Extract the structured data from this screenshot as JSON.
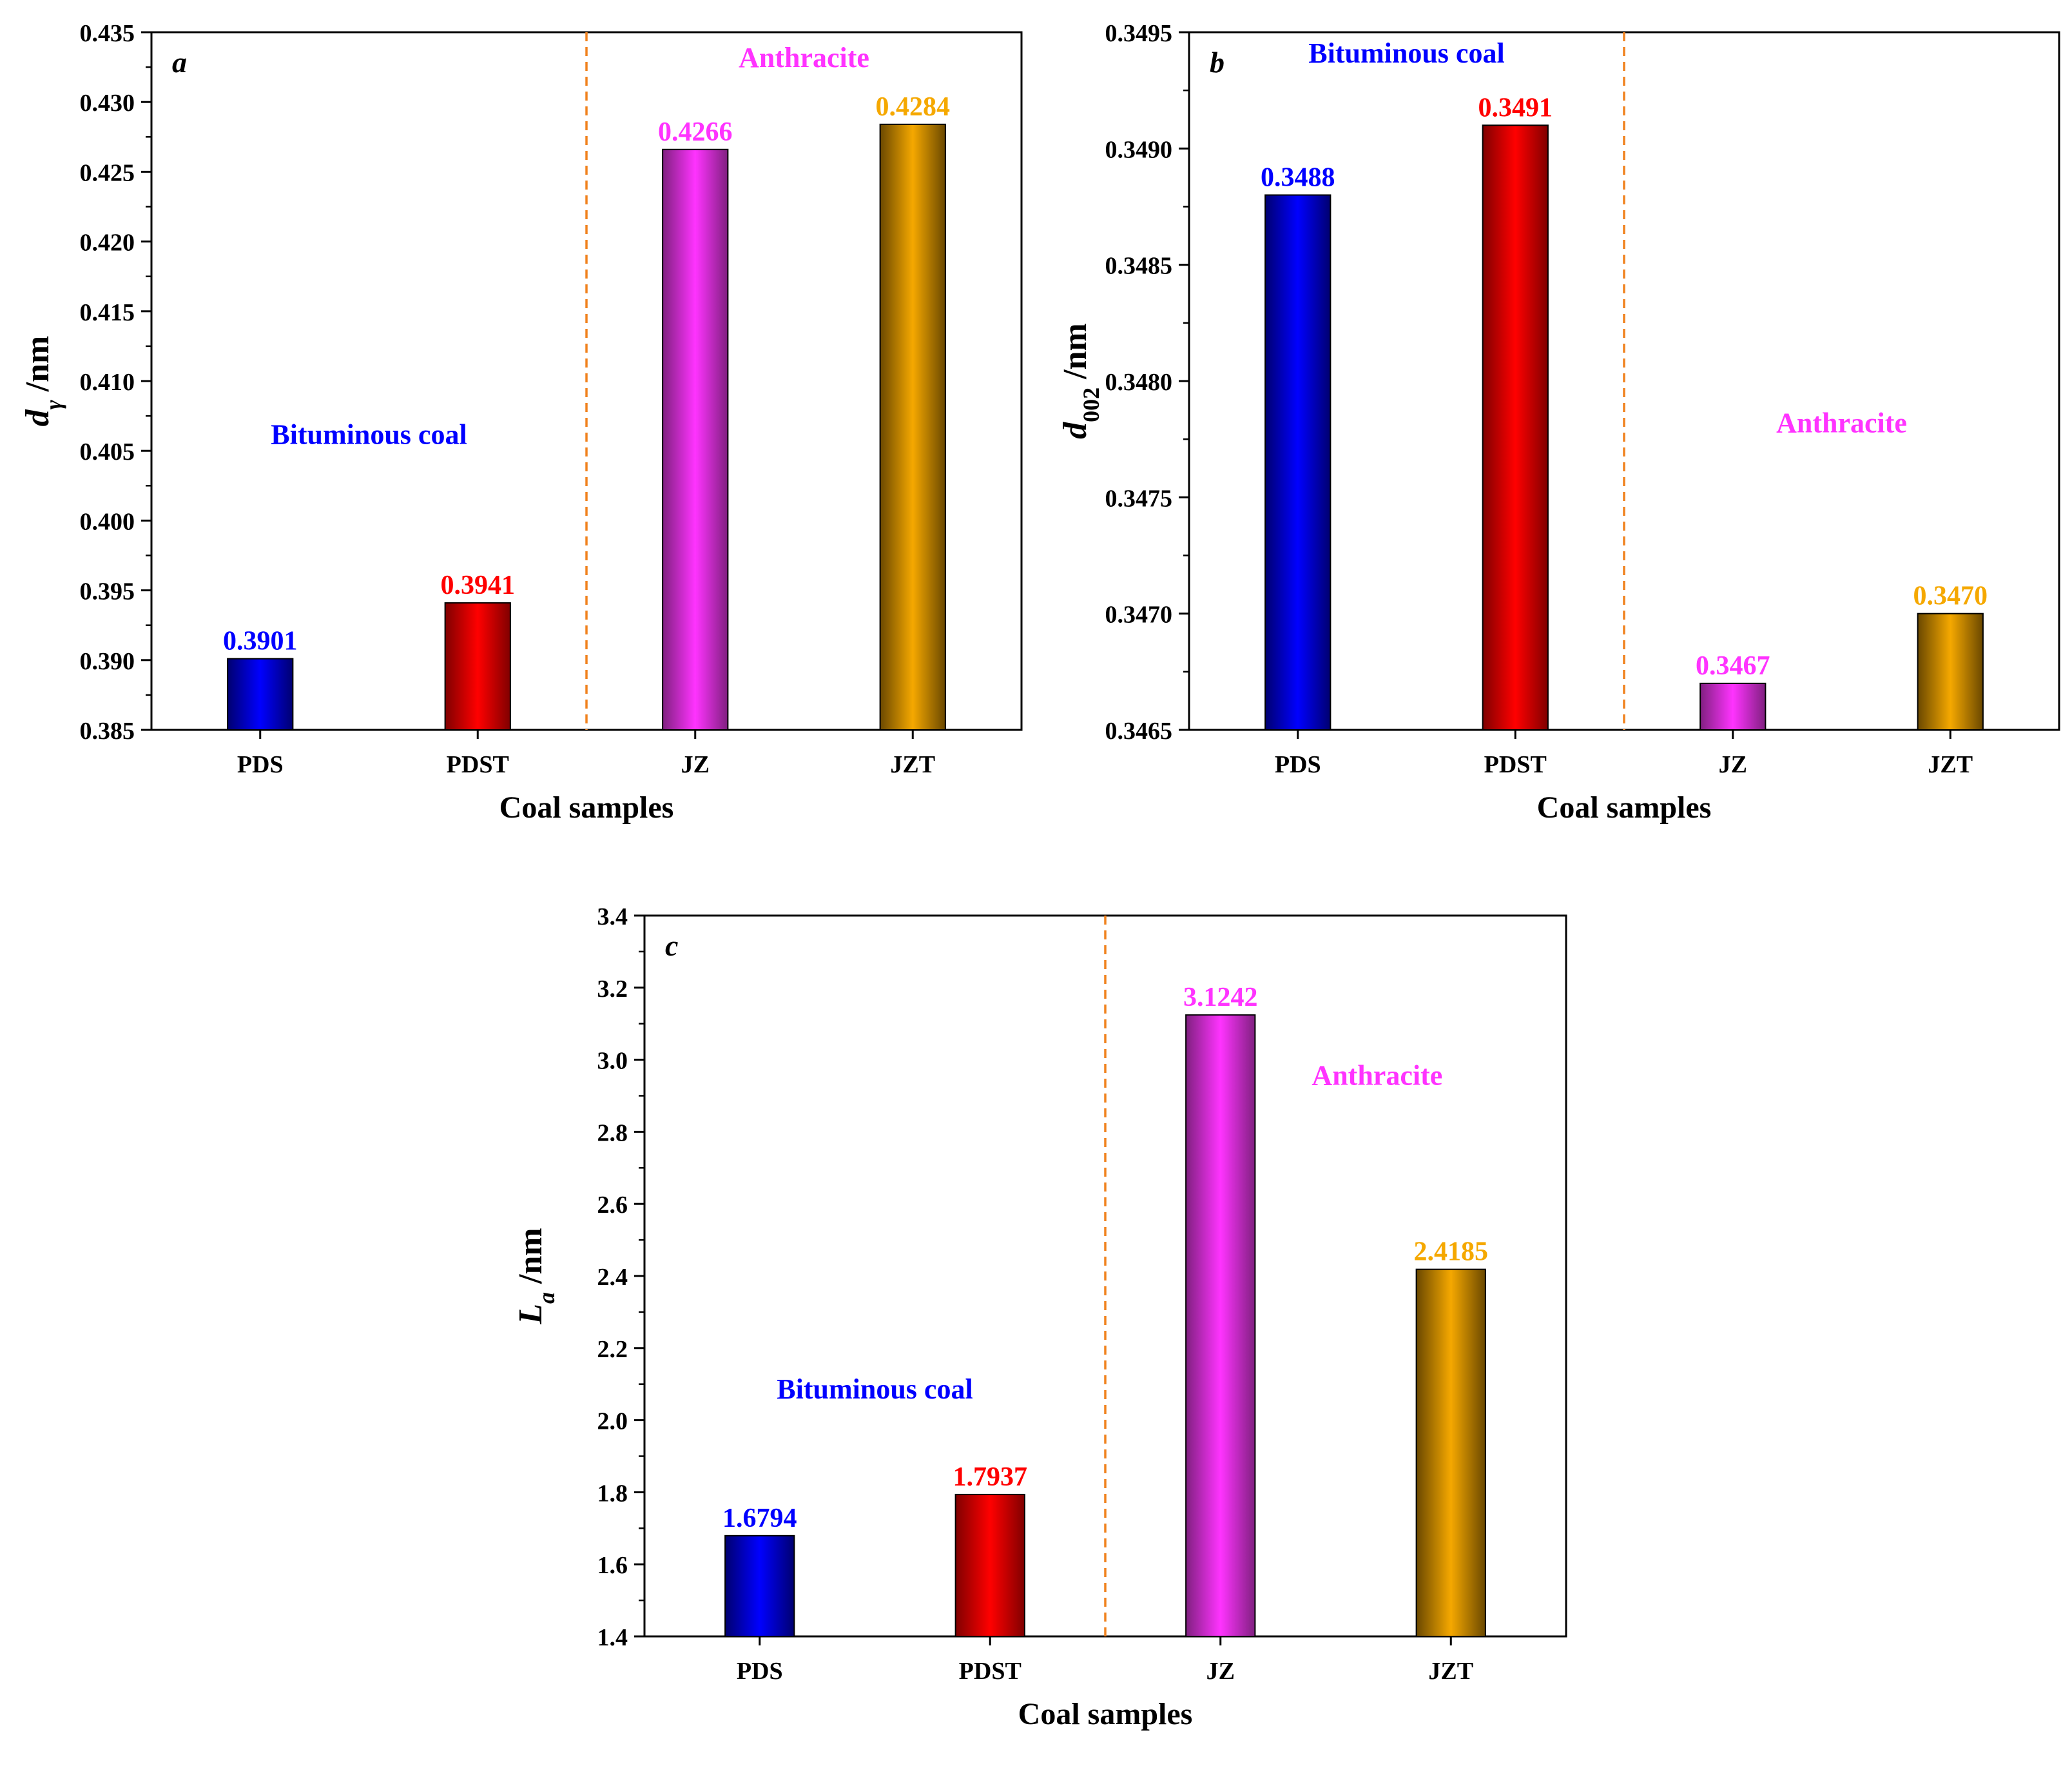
{
  "chart_data": [
    {
      "type": "bar",
      "panel_label": "a",
      "ylabel_main": "d",
      "ylabel_sub": "γ",
      "ylabel_unit": "/nm",
      "sub_style": "italic",
      "xlabel": "Coal samples",
      "categories": [
        "PDS",
        "PDST",
        "JZ",
        "JZT"
      ],
      "values": [
        0.3901,
        0.3941,
        0.4266,
        0.4284
      ],
      "value_labels": [
        "0.3901",
        "0.3941",
        "0.4266",
        "0.4284"
      ],
      "colors": [
        "#0000ff",
        "#ff0000",
        "#ff33ff",
        "#f5a800"
      ],
      "ylim": [
        0.385,
        0.435
      ],
      "y_ticks": [
        "0.385",
        "0.390",
        "0.395",
        "0.400",
        "0.405",
        "0.410",
        "0.415",
        "0.420",
        "0.425",
        "0.430",
        "0.435"
      ],
      "y_minor_step": 0.0025,
      "group_annotations": [
        {
          "text": "Bituminous coal",
          "color": "#0000ff",
          "x_index": 0.5,
          "y": 0.4055
        },
        {
          "text": "Anthracite",
          "color": "#ff33ff",
          "x_index": 2.5,
          "y": 0.4325
        }
      ]
    },
    {
      "type": "bar",
      "panel_label": "b",
      "ylabel_main": "d",
      "ylabel_sub": "002",
      "ylabel_unit": "/nm",
      "sub_style": "normal",
      "xlabel": "Coal samples",
      "categories": [
        "PDS",
        "PDST",
        "JZ",
        "JZT"
      ],
      "values": [
        0.3488,
        0.3491,
        0.3467,
        0.347
      ],
      "value_labels": [
        "0.3488",
        "0.3491",
        "0.3467",
        "0.3470"
      ],
      "colors": [
        "#0000ff",
        "#ff0000",
        "#ff33ff",
        "#f5a800"
      ],
      "ylim": [
        0.3465,
        0.3495
      ],
      "y_ticks": [
        "0.3465",
        "0.3470",
        "0.3475",
        "0.3480",
        "0.3485",
        "0.3490",
        "0.3495"
      ],
      "y_minor_step": 0.00025,
      "group_annotations": [
        {
          "text": "Bituminous coal",
          "color": "#0000ff",
          "x_index": 0.5,
          "y": 0.34937
        },
        {
          "text": "Anthracite",
          "color": "#ff33ff",
          "x_index": 2.5,
          "y": 0.34778
        }
      ]
    },
    {
      "type": "bar",
      "panel_label": "c",
      "ylabel_main": "L",
      "ylabel_sub": "a",
      "ylabel_unit": "/nm",
      "sub_style": "italic",
      "xlabel": "Coal samples",
      "categories": [
        "PDS",
        "PDST",
        "JZ",
        "JZT"
      ],
      "values": [
        1.6794,
        1.7937,
        3.1242,
        2.4185
      ],
      "value_labels": [
        "1.6794",
        "1.7937",
        "3.1242",
        "2.4185"
      ],
      "colors": [
        "#0000ff",
        "#ff0000",
        "#ff33ff",
        "#f5a800"
      ],
      "ylim": [
        1.4,
        3.4
      ],
      "y_ticks": [
        "1.4",
        "1.6",
        "1.8",
        "2.0",
        "2.2",
        "2.4",
        "2.6",
        "2.8",
        "3.0",
        "3.2",
        "3.4"
      ],
      "y_minor_step": 0.1,
      "group_annotations": [
        {
          "text": "Bituminous coal",
          "color": "#0000ff",
          "x_index": 0.5,
          "y": 2.06
        },
        {
          "text": "Anthracite",
          "color": "#ff33ff",
          "x_index": 2.68,
          "y": 2.93
        }
      ]
    }
  ]
}
